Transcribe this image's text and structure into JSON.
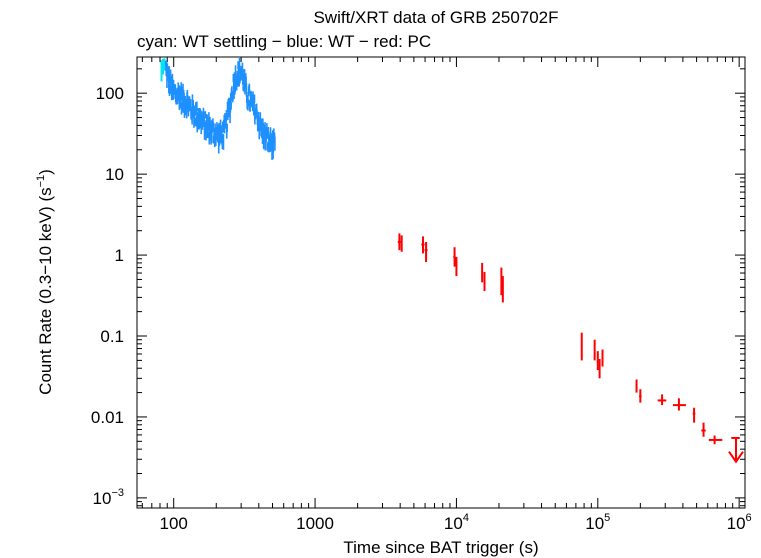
{
  "chart_data": {
    "type": "scatter",
    "title": "Swift/XRT data of GRB 250702F",
    "subtitle": "cyan: WT settling − blue: WT − red: PC",
    "xlabel": "Time since BAT trigger (s)",
    "ylabel_main": "Count Rate (0.3−10 keV) (s",
    "ylabel_sup": "−1",
    "ylabel_end": ")",
    "x_scale": "log",
    "y_scale": "log",
    "xlim": [
      55,
      1100000
    ],
    "ylim": [
      0.00075,
      280
    ],
    "x_ticks": [
      {
        "value": 100,
        "base": "100",
        "exp": ""
      },
      {
        "value": 1000,
        "base": "1000",
        "exp": ""
      },
      {
        "value": 10000,
        "base": "10",
        "exp": "4"
      },
      {
        "value": 100000,
        "base": "10",
        "exp": "5"
      },
      {
        "value": 1000000,
        "base": "10",
        "exp": "6"
      }
    ],
    "y_ticks": [
      {
        "value": 0.001,
        "base": "10",
        "exp": "−3"
      },
      {
        "value": 0.01,
        "base": "0.01",
        "exp": ""
      },
      {
        "value": 0.1,
        "base": "0.1",
        "exp": ""
      },
      {
        "value": 1,
        "base": "1",
        "exp": ""
      },
      {
        "value": 10,
        "base": "10",
        "exp": ""
      },
      {
        "value": 100,
        "base": "100",
        "exp": ""
      }
    ],
    "colors": {
      "wt_settling": "#00e5ee",
      "wt": "#1e90ff",
      "pc": "#ff0000",
      "axis": "#000000"
    },
    "series": [
      {
        "name": "WT settling",
        "color": "#00e5ee",
        "points": [
          {
            "t": 82,
            "rate": 200,
            "lo": 140,
            "hi": 255
          },
          {
            "t": 84,
            "rate": 230,
            "lo": 170,
            "hi": 265
          },
          {
            "t": 86,
            "rate": 250,
            "lo": 190,
            "hi": 270
          }
        ]
      },
      {
        "name": "WT",
        "color": "#1e90ff",
        "curve": [
          [
            88,
            200
          ],
          [
            92,
            150
          ],
          [
            96,
            120
          ],
          [
            100,
            105
          ],
          [
            105,
            95
          ],
          [
            110,
            100
          ],
          [
            115,
            85
          ],
          [
            120,
            80
          ],
          [
            125,
            75
          ],
          [
            130,
            68
          ],
          [
            135,
            62
          ],
          [
            140,
            58
          ],
          [
            148,
            52
          ],
          [
            155,
            48
          ],
          [
            162,
            42
          ],
          [
            170,
            40
          ],
          [
            178,
            38
          ],
          [
            185,
            34
          ],
          [
            192,
            33
          ],
          [
            200,
            32
          ],
          [
            210,
            30
          ],
          [
            220,
            30
          ],
          [
            228,
            34
          ],
          [
            235,
            40
          ],
          [
            242,
            55
          ],
          [
            250,
            70
          ],
          [
            258,
            100
          ],
          [
            265,
            130
          ],
          [
            272,
            150
          ],
          [
            280,
            170
          ],
          [
            290,
            180
          ],
          [
            300,
            190
          ],
          [
            310,
            160
          ],
          [
            320,
            120
          ],
          [
            330,
            100
          ],
          [
            340,
            90
          ],
          [
            350,
            80
          ],
          [
            360,
            70
          ],
          [
            375,
            65
          ],
          [
            390,
            52
          ],
          [
            405,
            42
          ],
          [
            420,
            36
          ],
          [
            440,
            30
          ],
          [
            460,
            27
          ],
          [
            480,
            25
          ],
          [
            500,
            23
          ],
          [
            520,
            22
          ]
        ],
        "scatter_frac": 0.22
      },
      {
        "name": "PC",
        "color": "#ff0000",
        "points": [
          {
            "t": 3950,
            "rate": 1.45,
            "lo": 1.15,
            "hi": 1.85,
            "xlo": 3850,
            "xhi": 4050
          },
          {
            "t": 4100,
            "rate": 1.35,
            "lo": 1.1,
            "hi": 1.75,
            "xlo": 4050,
            "xhi": 4150
          },
          {
            "t": 5800,
            "rate": 1.35,
            "lo": 1.05,
            "hi": 1.7,
            "xlo": 5650,
            "xhi": 5950
          },
          {
            "t": 6100,
            "rate": 1.15,
            "lo": 0.82,
            "hi": 1.45,
            "xlo": 5950,
            "xhi": 6250
          },
          {
            "t": 9700,
            "rate": 0.95,
            "lo": 0.72,
            "hi": 1.25,
            "xlo": 9500,
            "xhi": 9850
          },
          {
            "t": 10000,
            "rate": 0.72,
            "lo": 0.55,
            "hi": 0.95,
            "xlo": 9850,
            "xhi": 10150
          },
          {
            "t": 15200,
            "rate": 0.62,
            "lo": 0.46,
            "hi": 0.8,
            "xlo": 15000,
            "xhi": 15400
          },
          {
            "t": 15800,
            "rate": 0.48,
            "lo": 0.36,
            "hi": 0.62,
            "xlo": 15600,
            "xhi": 16000
          },
          {
            "t": 20800,
            "rate": 0.48,
            "lo": 0.32,
            "hi": 0.7,
            "xlo": 20600,
            "xhi": 21000
          },
          {
            "t": 21300,
            "rate": 0.38,
            "lo": 0.26,
            "hi": 0.55,
            "xlo": 21100,
            "xhi": 21500
          },
          {
            "t": 77000,
            "rate": 0.075,
            "lo": 0.05,
            "hi": 0.11,
            "xlo": 76000,
            "xhi": 78000
          },
          {
            "t": 95000,
            "rate": 0.07,
            "lo": 0.05,
            "hi": 0.09,
            "xlo": 94000,
            "xhi": 96000
          },
          {
            "t": 100000,
            "rate": 0.05,
            "lo": 0.038,
            "hi": 0.065,
            "xlo": 99000,
            "xhi": 101000
          },
          {
            "t": 103000,
            "rate": 0.04,
            "lo": 0.03,
            "hi": 0.052,
            "xlo": 102000,
            "xhi": 104000
          },
          {
            "t": 108000,
            "rate": 0.055,
            "lo": 0.042,
            "hi": 0.068,
            "xlo": 107000,
            "xhi": 109000
          },
          {
            "t": 188000,
            "rate": 0.025,
            "lo": 0.02,
            "hi": 0.029,
            "xlo": 185000,
            "xhi": 191000
          },
          {
            "t": 200000,
            "rate": 0.018,
            "lo": 0.015,
            "hi": 0.022,
            "xlo": 196000,
            "xhi": 204000
          },
          {
            "t": 285000,
            "rate": 0.016,
            "lo": 0.014,
            "hi": 0.019,
            "xlo": 265000,
            "xhi": 305000
          },
          {
            "t": 375000,
            "rate": 0.014,
            "lo": 0.012,
            "hi": 0.017,
            "xlo": 340000,
            "xhi": 420000
          },
          {
            "t": 480000,
            "rate": 0.011,
            "lo": 0.0085,
            "hi": 0.013,
            "xlo": 470000,
            "xhi": 490000
          },
          {
            "t": 560000,
            "rate": 0.0068,
            "lo": 0.0057,
            "hi": 0.0085,
            "xlo": 540000,
            "xhi": 580000
          },
          {
            "t": 670000,
            "rate": 0.0052,
            "lo": 0.0046,
            "hi": 0.0059,
            "xlo": 610000,
            "xhi": 760000
          }
        ]
      }
    ],
    "upper_limit": {
      "t": 950000,
      "rate": 0.0055,
      "arrow_to": 0.0028,
      "xlo": 880000,
      "xhi": 1010000
    }
  }
}
